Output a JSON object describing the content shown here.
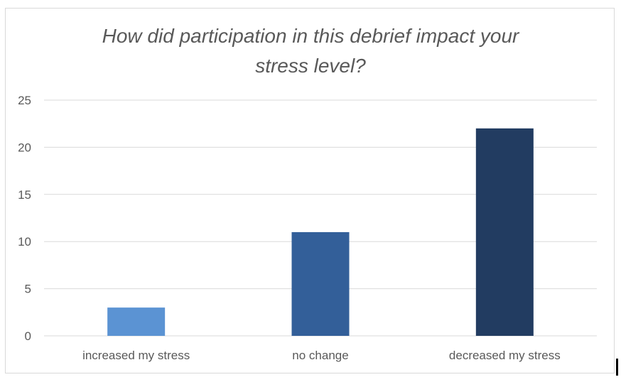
{
  "chart_data": {
    "type": "bar",
    "title_lines": [
      "How did participation in this debrief impact your",
      "stress level?"
    ],
    "categories": [
      "increased my stress",
      "no change",
      "decreased my stress"
    ],
    "values": [
      3,
      11,
      22
    ],
    "bar_colors": [
      "#5b93d3",
      "#335f99",
      "#223c61"
    ],
    "ylim": [
      0,
      25
    ],
    "yticks": [
      "0",
      "5",
      "10",
      "15",
      "20",
      "25"
    ],
    "grid": true,
    "legend": "none",
    "xlabel": "",
    "ylabel": ""
  },
  "colors": {
    "gridline": "#d9d9d9",
    "tick_text": "#595959",
    "title_text": "#595959"
  }
}
